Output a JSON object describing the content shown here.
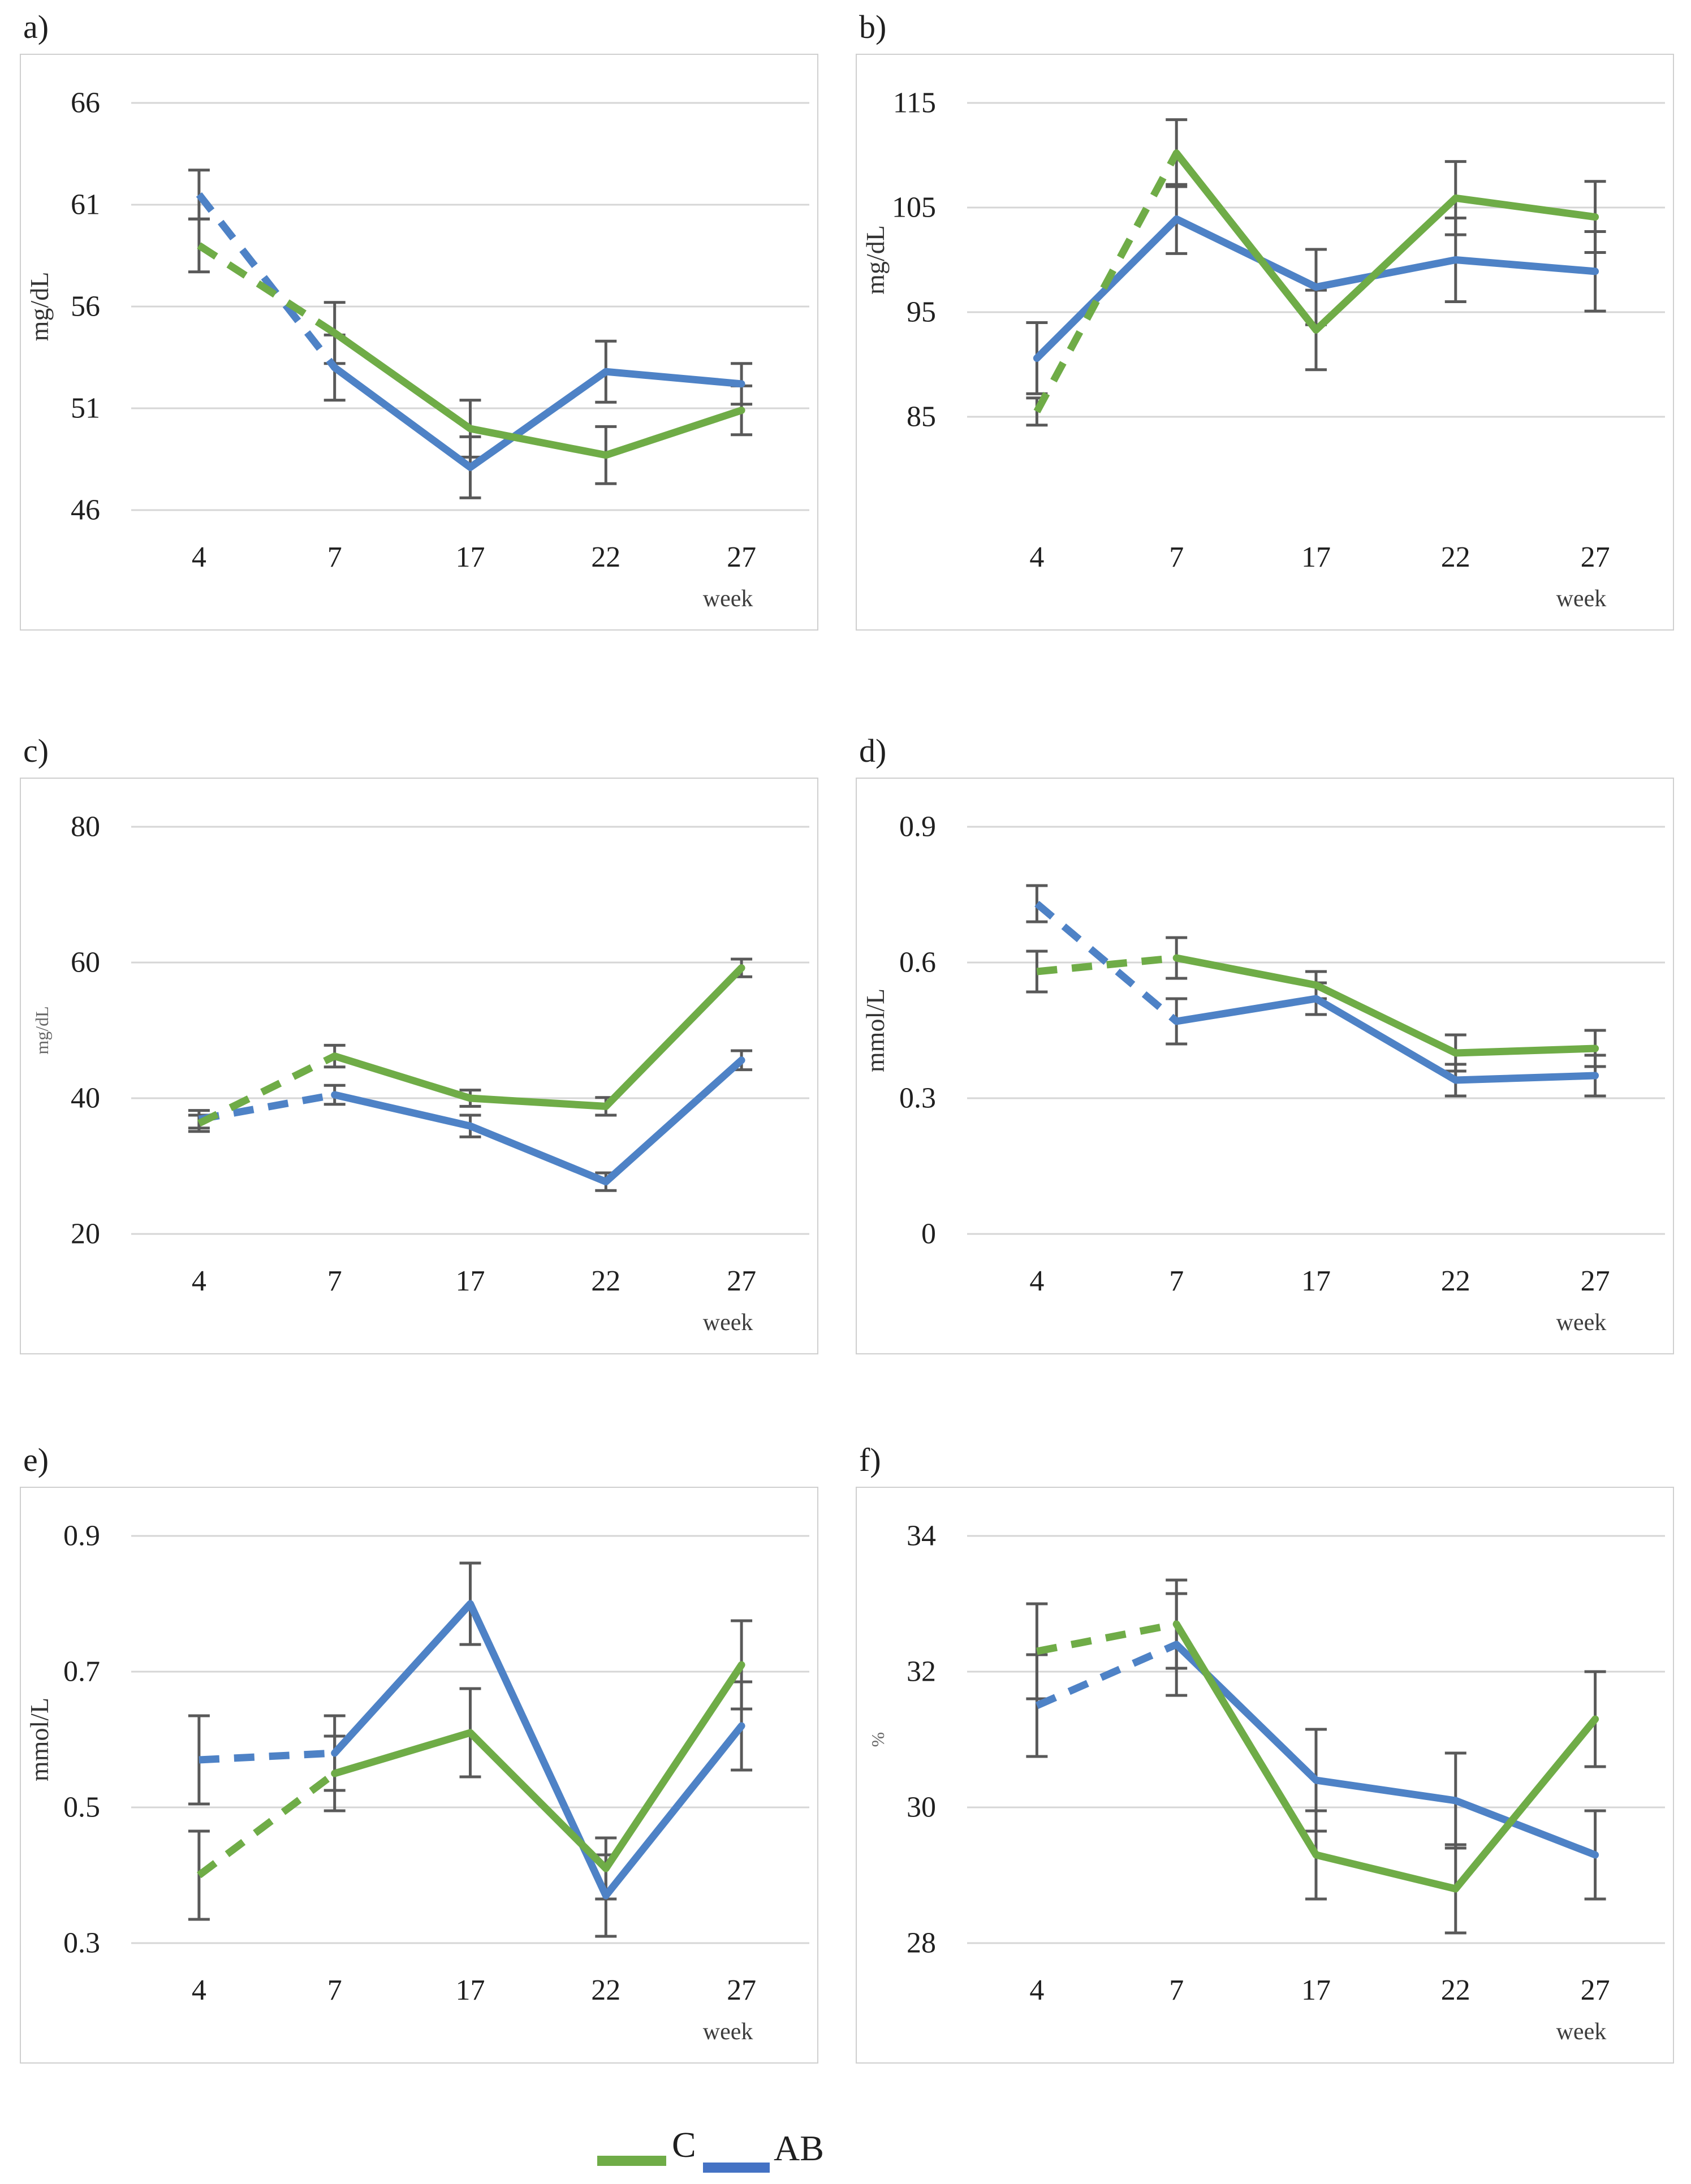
{
  "page": {
    "background": "#ffffff"
  },
  "legend": {
    "items": [
      {
        "label": "C",
        "color": "#6FAC47"
      },
      {
        "label": "AB",
        "color": "#4472C4"
      }
    ]
  },
  "chart_data": [
    {
      "id": "a",
      "label": "a)",
      "type": "line",
      "ylabel": "mg/dL",
      "ylabel_small": false,
      "xlabel": "week",
      "x_categories": [
        "4",
        "7",
        "17",
        "22",
        "27"
      ],
      "y_tick_values": [
        46,
        51,
        56,
        61,
        66
      ],
      "y_tick_labels": [
        "46",
        "51",
        "56",
        "61",
        "66"
      ],
      "ylim": [
        46,
        66
      ],
      "grid": true,
      "legend_position": "bottom",
      "series": [
        {
          "name": "C",
          "color": "#6FAC47",
          "dashed_first_segment": true,
          "values": [
            59.0,
            54.7,
            50.0,
            48.7,
            50.9
          ],
          "errors": [
            1.3,
            1.5,
            1.4,
            1.4,
            1.2
          ]
        },
        {
          "name": "AB",
          "color": "#4E82C6",
          "dashed_first_segment": true,
          "values": [
            61.5,
            53.0,
            48.1,
            52.8,
            52.2
          ],
          "errors": [
            1.2,
            1.6,
            1.5,
            1.5,
            1.0
          ]
        }
      ]
    },
    {
      "id": "b",
      "label": "b)",
      "type": "line",
      "ylabel": "mg/dL",
      "ylabel_small": false,
      "xlabel": "week",
      "x_categories": [
        "4",
        "7",
        "17",
        "22",
        "27"
      ],
      "y_tick_values": [
        85,
        95,
        105,
        115
      ],
      "y_tick_labels": [
        "85",
        "95",
        "105",
        "115"
      ],
      "ylim": [
        85,
        115
      ],
      "grid": true,
      "legend_position": "bottom",
      "series": [
        {
          "name": "C",
          "color": "#6FAC47",
          "dashed_first_segment": true,
          "values": [
            85.5,
            110.2,
            93.3,
            105.9,
            104.1
          ],
          "errors": [
            1.3,
            3.2,
            3.8,
            3.5,
            3.4
          ]
        },
        {
          "name": "AB",
          "color": "#4E82C6",
          "dashed_first_segment": false,
          "values": [
            90.6,
            103.9,
            97.4,
            100.0,
            98.9
          ],
          "errors": [
            3.4,
            3.3,
            3.6,
            4.0,
            3.8
          ]
        }
      ]
    },
    {
      "id": "c",
      "label": "c)",
      "type": "line",
      "ylabel": "mg/dL",
      "ylabel_small": true,
      "xlabel": "week",
      "x_categories": [
        "4",
        "7",
        "17",
        "22",
        "27"
      ],
      "y_tick_values": [
        20,
        40,
        60,
        80
      ],
      "y_tick_labels": [
        "20",
        "40",
        "60",
        "80"
      ],
      "ylim": [
        20,
        80
      ],
      "grid": true,
      "legend_position": "bottom",
      "series": [
        {
          "name": "C",
          "color": "#6FAC47",
          "dashed_first_segment": true,
          "values": [
            36.3,
            46.2,
            40.0,
            38.8,
            59.2
          ],
          "errors": [
            1.2,
            1.6,
            1.2,
            1.3,
            1.3
          ]
        },
        {
          "name": "AB",
          "color": "#4E82C6",
          "dashed_first_segment": true,
          "values": [
            36.9,
            40.5,
            35.9,
            27.7,
            45.6
          ],
          "errors": [
            1.3,
            1.4,
            1.6,
            1.3,
            1.4
          ]
        }
      ]
    },
    {
      "id": "d",
      "label": "d)",
      "type": "line",
      "ylabel": "mmol/L",
      "ylabel_small": false,
      "xlabel": "week",
      "x_categories": [
        "4",
        "7",
        "17",
        "22",
        "27"
      ],
      "y_tick_values": [
        0,
        0.3,
        0.6,
        0.9
      ],
      "y_tick_labels": [
        "0",
        "0.3",
        "0.6",
        "0.9"
      ],
      "ylim": [
        0,
        0.9
      ],
      "grid": true,
      "legend_position": "bottom",
      "series": [
        {
          "name": "C",
          "color": "#6FAC47",
          "dashed_first_segment": true,
          "values": [
            0.58,
            0.61,
            0.55,
            0.4,
            0.41
          ],
          "errors": [
            0.045,
            0.045,
            0.03,
            0.04,
            0.04
          ]
        },
        {
          "name": "AB",
          "color": "#4E82C6",
          "dashed_first_segment": true,
          "values": [
            0.73,
            0.47,
            0.52,
            0.34,
            0.35
          ],
          "errors": [
            0.04,
            0.05,
            0.035,
            0.035,
            0.045
          ]
        }
      ]
    },
    {
      "id": "e",
      "label": "e)",
      "type": "line",
      "ylabel": "mmol/L",
      "ylabel_small": false,
      "xlabel": "week",
      "x_categories": [
        "4",
        "7",
        "17",
        "22",
        "27"
      ],
      "y_tick_values": [
        0.3,
        0.5,
        0.7,
        0.9
      ],
      "y_tick_labels": [
        "0.3",
        "0.5",
        "0.7",
        "0.9"
      ],
      "ylim": [
        0.3,
        0.9
      ],
      "grid": true,
      "legend_position": "bottom",
      "series": [
        {
          "name": "C",
          "color": "#6FAC47",
          "dashed_first_segment": true,
          "values": [
            0.4,
            0.55,
            0.61,
            0.41,
            0.71
          ],
          "errors": [
            0.065,
            0.055,
            0.065,
            0.045,
            0.065
          ]
        },
        {
          "name": "AB",
          "color": "#4E82C6",
          "dashed_first_segment": true,
          "values": [
            0.57,
            0.58,
            0.8,
            0.37,
            0.62
          ],
          "errors": [
            0.065,
            0.055,
            0.06,
            0.06,
            0.065
          ]
        }
      ]
    },
    {
      "id": "f",
      "label": "f)",
      "type": "line",
      "ylabel": "%",
      "ylabel_small": true,
      "xlabel": "week",
      "x_categories": [
        "4",
        "7",
        "17",
        "22",
        "27"
      ],
      "y_tick_values": [
        28,
        30,
        32,
        34
      ],
      "y_tick_labels": [
        "28",
        "30",
        "32",
        "34"
      ],
      "ylim": [
        28,
        34
      ],
      "grid": true,
      "legend_position": "bottom",
      "series": [
        {
          "name": "C",
          "color": "#6FAC47",
          "dashed_first_segment": true,
          "values": [
            32.3,
            32.7,
            29.3,
            28.8,
            31.3
          ],
          "errors": [
            0.7,
            0.65,
            0.65,
            0.65,
            0.7
          ]
        },
        {
          "name": "AB",
          "color": "#4E82C6",
          "dashed_first_segment": true,
          "values": [
            31.5,
            32.4,
            30.4,
            30.1,
            29.3
          ],
          "errors": [
            0.75,
            0.75,
            0.75,
            0.7,
            0.65
          ]
        }
      ]
    }
  ]
}
